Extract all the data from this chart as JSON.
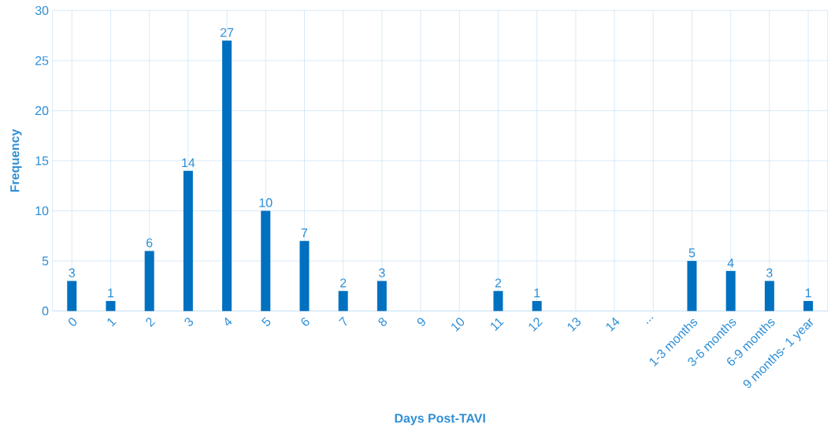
{
  "chart_data": {
    "type": "bar",
    "xlabel": "Days Post-TAVI",
    "ylabel": "Frequency",
    "categories": [
      "0",
      "1",
      "2",
      "3",
      "4",
      "5",
      "6",
      "7",
      "8",
      "9",
      "10",
      "11",
      "12",
      "13",
      "14",
      "...",
      "1-3 months",
      "3-6 months",
      "6-9 months",
      "9 months- 1 year"
    ],
    "values": [
      3,
      1,
      6,
      14,
      27,
      10,
      7,
      2,
      3,
      0,
      0,
      2,
      1,
      0,
      0,
      0,
      5,
      4,
      3,
      1
    ],
    "value_labels": [
      "3",
      "1",
      "6",
      "14",
      "27",
      "10",
      "7",
      "2",
      "3",
      null,
      null,
      "2",
      "1",
      null,
      null,
      null,
      "5",
      "4",
      "3",
      "1"
    ],
    "color": "#0070c0",
    "ylim": [
      0,
      30
    ],
    "yticks": [
      0,
      5,
      10,
      15,
      20,
      25,
      30
    ],
    "grid": true
  }
}
